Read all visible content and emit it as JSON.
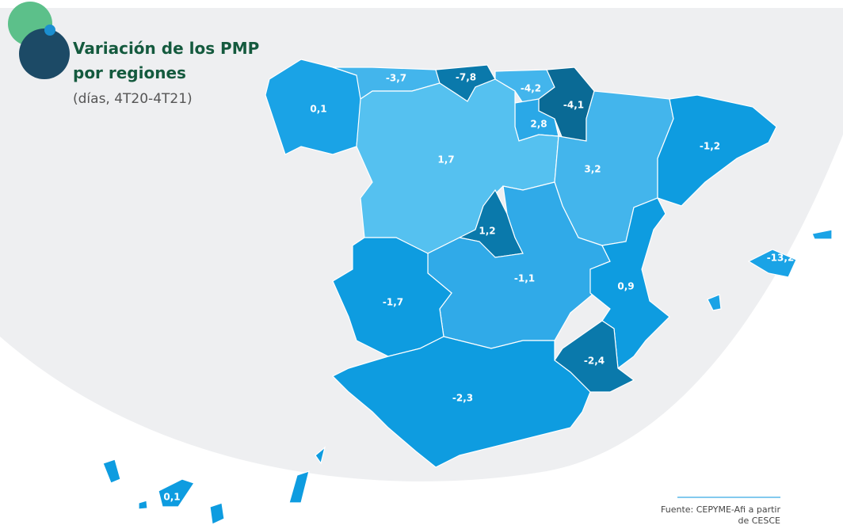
{
  "title": [
    "Variación de los PMP",
    "por regiones"
  ],
  "subtitle": "(días, 4T20-4T21)",
  "regions": [
    {
      "value": "0,1",
      "color": "#1aa3e6"
    },
    {
      "value": "-3,7",
      "color": "#43b5ec"
    },
    {
      "value": "-7,8",
      "color": "#0a79ab"
    },
    {
      "value": "-4,2",
      "color": "#43b5ec"
    },
    {
      "value": "-4,1",
      "color": "#0a6a95"
    },
    {
      "value": "2,8",
      "color": "#2aa8e7"
    },
    {
      "value": "1,7",
      "color": "#55c1f0"
    },
    {
      "value": "3,2",
      "color": "#43b5ec"
    },
    {
      "value": "-1,2",
      "color": "#0e9ce0"
    },
    {
      "value": "1,2",
      "color": "#0a79ab"
    },
    {
      "value": "-1,1",
      "color": "#30aae8"
    },
    {
      "value": "0,9",
      "color": "#0e9ce0"
    },
    {
      "value": "-2,4",
      "color": "#0a79ab"
    },
    {
      "value": "-1,7",
      "color": "#0e9ce0"
    },
    {
      "value": "-2,3",
      "color": "#0e9ce0"
    },
    {
      "value": "-13,2",
      "color": "#1aa3e6"
    },
    {
      "value": "0,1",
      "color": "#0e9ce0"
    }
  ],
  "source": [
    "Fuente: CEPYME-Afi a partir",
    "de CESCE"
  ]
}
